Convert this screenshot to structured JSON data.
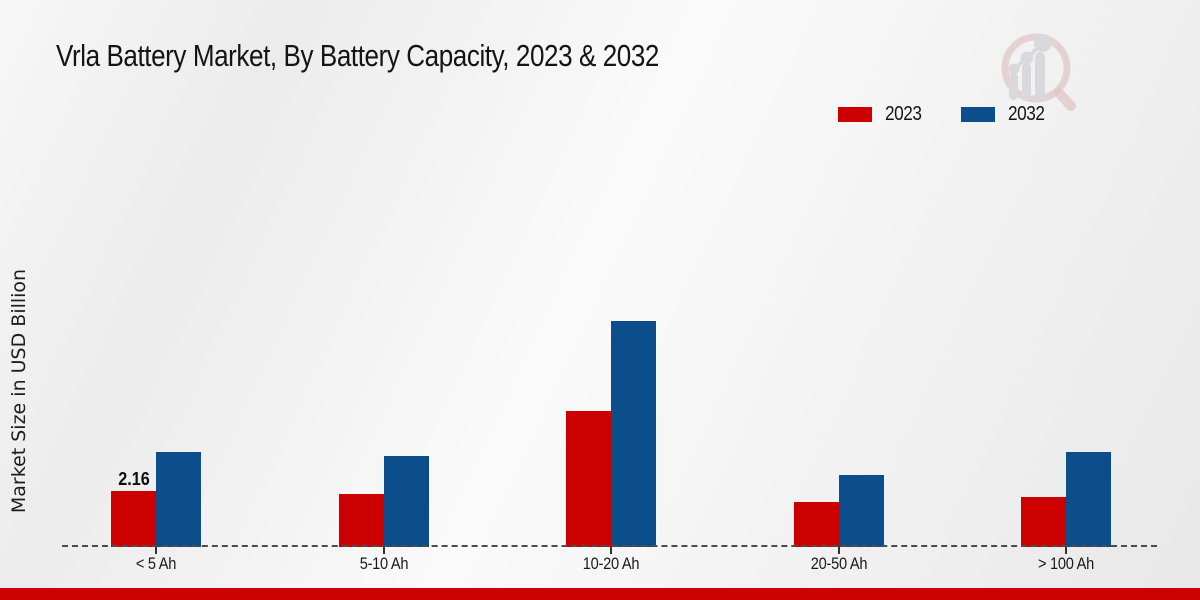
{
  "title": "Vrla Battery Market, By Battery Capacity, 2023 & 2032",
  "y_axis_label": "Market Size in USD Billion",
  "legend": {
    "items": [
      {
        "label": "2023",
        "color": "#cc0000"
      },
      {
        "label": "2032",
        "color": "#0c4d8c"
      }
    ]
  },
  "colors": {
    "series_2023": "#cc0000",
    "series_2032": "#0c4d8c",
    "footer_bar": "#cc0000",
    "axis_dash": "#4b4b4b"
  },
  "chart_data": {
    "type": "bar",
    "categories": [
      "< 5 Ah",
      "5-10 Ah",
      "10-20 Ah",
      "20-50 Ah",
      "> 100 Ah"
    ],
    "series": [
      {
        "name": "2023",
        "color": "#cc0000",
        "values": [
          2.16,
          2.08,
          5.28,
          1.77,
          1.94
        ]
      },
      {
        "name": "2032",
        "color": "#0c4d8c",
        "values": [
          3.7,
          3.53,
          8.78,
          2.81,
          3.69
        ]
      }
    ],
    "title": "Vrla Battery Market, By Battery Capacity, 2023 & 2032",
    "xlabel": "",
    "ylabel": "Market Size in USD Billion",
    "ylim": [
      0,
      10
    ],
    "grid": false,
    "legend_position": "top-right",
    "annotations": [
      {
        "series": "2023",
        "category": "< 5 Ah",
        "text": "2.16"
      }
    ]
  }
}
